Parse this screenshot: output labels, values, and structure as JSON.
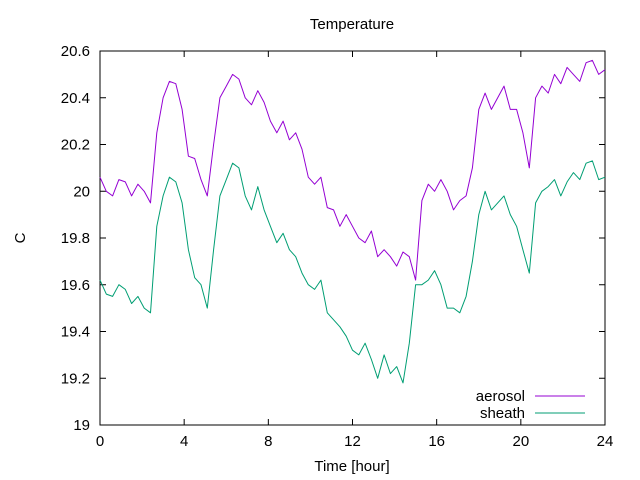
{
  "chart_data": {
    "type": "line",
    "title": "Temperature",
    "xlabel": "Time [hour]",
    "ylabel": "C",
    "xlim": [
      0,
      24
    ],
    "ylim": [
      19,
      20.6
    ],
    "xticks": [
      0,
      4,
      8,
      12,
      16,
      20,
      24
    ],
    "yticks": [
      19,
      19.2,
      19.4,
      19.6,
      19.8,
      20,
      20.2,
      20.4,
      20.6
    ],
    "xtick_labels": [
      "0",
      "4",
      "8",
      "12",
      "16",
      "20",
      "24"
    ],
    "ytick_labels": [
      "19",
      "19.2",
      "19.4",
      "19.6",
      "19.8",
      "20",
      "20.2",
      "20.4",
      "20.6"
    ],
    "grid": false,
    "legend_position": "bottom-right",
    "series": [
      {
        "name": "aerosol",
        "color": "#9400d3",
        "x": [
          0,
          0.3,
          0.6,
          0.9,
          1.2,
          1.5,
          1.8,
          2.1,
          2.4,
          2.7,
          3.0,
          3.3,
          3.6,
          3.9,
          4.2,
          4.5,
          4.8,
          5.1,
          5.4,
          5.7,
          6.0,
          6.3,
          6.6,
          6.9,
          7.2,
          7.5,
          7.8,
          8.1,
          8.4,
          8.7,
          9.0,
          9.3,
          9.6,
          9.9,
          10.2,
          10.5,
          10.8,
          11.1,
          11.4,
          11.7,
          12.0,
          12.3,
          12.6,
          12.9,
          13.2,
          13.5,
          13.8,
          14.1,
          14.4,
          14.7,
          15.0,
          15.3,
          15.6,
          15.9,
          16.2,
          16.5,
          16.8,
          17.1,
          17.4,
          17.7,
          18.0,
          18.3,
          18.6,
          18.9,
          19.2,
          19.5,
          19.8,
          20.1,
          20.4,
          20.7,
          21.0,
          21.3,
          21.6,
          21.9,
          22.2,
          22.5,
          22.8,
          23.1,
          23.4,
          23.7,
          24.0
        ],
        "values": [
          20.06,
          20.0,
          19.98,
          20.05,
          20.04,
          19.98,
          20.03,
          20.0,
          19.95,
          20.25,
          20.4,
          20.47,
          20.46,
          20.35,
          20.15,
          20.14,
          20.05,
          19.98,
          20.2,
          20.4,
          20.45,
          20.5,
          20.48,
          20.4,
          20.37,
          20.43,
          20.38,
          20.3,
          20.25,
          20.3,
          20.22,
          20.25,
          20.18,
          20.06,
          20.03,
          20.06,
          19.93,
          19.92,
          19.85,
          19.9,
          19.85,
          19.8,
          19.78,
          19.83,
          19.72,
          19.75,
          19.72,
          19.68,
          19.74,
          19.72,
          19.62,
          19.96,
          20.03,
          20.0,
          20.05,
          20.0,
          19.92,
          19.96,
          19.98,
          20.1,
          20.35,
          20.42,
          20.35,
          20.4,
          20.45,
          20.35,
          20.35,
          20.25,
          20.1,
          20.4,
          20.45,
          20.42,
          20.5,
          20.46,
          20.53,
          20.5,
          20.47,
          20.55,
          20.56,
          20.5,
          20.52
        ]
      },
      {
        "name": "sheath",
        "color": "#009e73",
        "x": [
          0,
          0.3,
          0.6,
          0.9,
          1.2,
          1.5,
          1.8,
          2.1,
          2.4,
          2.7,
          3.0,
          3.3,
          3.6,
          3.9,
          4.2,
          4.5,
          4.8,
          5.1,
          5.4,
          5.7,
          6.0,
          6.3,
          6.6,
          6.9,
          7.2,
          7.5,
          7.8,
          8.1,
          8.4,
          8.7,
          9.0,
          9.3,
          9.6,
          9.9,
          10.2,
          10.5,
          10.8,
          11.1,
          11.4,
          11.7,
          12.0,
          12.3,
          12.6,
          12.9,
          13.2,
          13.5,
          13.8,
          14.1,
          14.4,
          14.7,
          15.0,
          15.3,
          15.6,
          15.9,
          16.2,
          16.5,
          16.8,
          17.1,
          17.4,
          17.7,
          18.0,
          18.3,
          18.6,
          18.9,
          19.2,
          19.5,
          19.8,
          20.1,
          20.4,
          20.7,
          21.0,
          21.3,
          21.6,
          21.9,
          22.2,
          22.5,
          22.8,
          23.1,
          23.4,
          23.7,
          24.0
        ],
        "values": [
          19.62,
          19.56,
          19.55,
          19.6,
          19.58,
          19.52,
          19.55,
          19.5,
          19.48,
          19.85,
          19.98,
          20.06,
          20.04,
          19.95,
          19.75,
          19.63,
          19.6,
          19.5,
          19.75,
          19.98,
          20.05,
          20.12,
          20.1,
          19.98,
          19.92,
          20.02,
          19.92,
          19.85,
          19.78,
          19.82,
          19.75,
          19.72,
          19.65,
          19.6,
          19.58,
          19.62,
          19.48,
          19.45,
          19.42,
          19.38,
          19.32,
          19.3,
          19.35,
          19.28,
          19.2,
          19.3,
          19.22,
          19.25,
          19.18,
          19.35,
          19.6,
          19.6,
          19.62,
          19.66,
          19.6,
          19.5,
          19.5,
          19.48,
          19.55,
          19.7,
          19.9,
          20.0,
          19.92,
          19.95,
          19.98,
          19.9,
          19.85,
          19.75,
          19.65,
          19.95,
          20.0,
          20.02,
          20.05,
          19.98,
          20.04,
          20.08,
          20.05,
          20.12,
          20.13,
          20.05,
          20.06
        ]
      }
    ]
  }
}
